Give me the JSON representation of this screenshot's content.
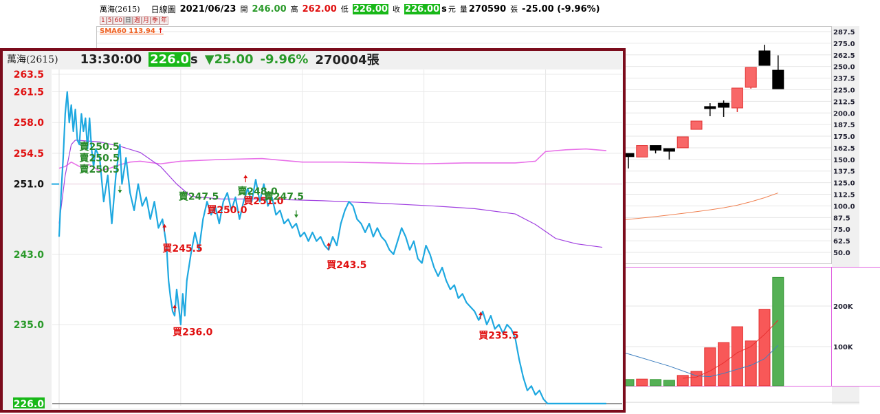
{
  "daily": {
    "stock_name": "萬海(2615)",
    "chart_type": "日線圖",
    "date": "2021/06/23",
    "open_label": "開",
    "open": "246.00",
    "high_label": "高",
    "high": "262.00",
    "low_label": "低",
    "low": "226.00",
    "close_label": "收",
    "close": "226.00",
    "suffix_s": "s",
    "currency": "元",
    "volume_label": "量",
    "volume": "270590",
    "volume_unit": "張",
    "change": "-25.00 (-9.96%)",
    "periods": [
      "1",
      "5",
      "60",
      "日",
      "週",
      "月",
      "季",
      "年"
    ],
    "selected_period": "日",
    "sma_label": "SMA60 113.94",
    "sma_arrow": "↑",
    "price_axis": [
      "287.5",
      "275.0",
      "262.5",
      "250.0",
      "237.5",
      "225.0",
      "212.5",
      "200.0",
      "187.5",
      "175.0",
      "162.5",
      "150.0",
      "137.5",
      "125.0",
      "112.5",
      "100.0",
      "87.5",
      "75.0",
      "62.5",
      "50.0"
    ],
    "volume_axis": [
      "200K",
      "100K"
    ],
    "colors": {
      "up": "#f86868",
      "down": "#000000",
      "sma60": "#f08050",
      "vol_up": "#f85858",
      "vol_down": "#55b055",
      "vol_ma_fast": "#e83030",
      "vol_ma_slow": "#4080c0"
    }
  },
  "chart_data": [
    {
      "type": "candlestick",
      "title": "日線圖",
      "ylim": [
        50,
        287.5
      ],
      "candles": [
        {
          "o": 156.5,
          "h": 156.5,
          "l": 140.3,
          "c": 153.0
        },
        {
          "o": 152.6,
          "h": 165.0,
          "l": 152.6,
          "c": 165.0
        },
        {
          "o": 165.0,
          "h": 165.0,
          "l": 156.5,
          "c": 160.0
        },
        {
          "o": 161.7,
          "h": 161.7,
          "l": 149.9,
          "c": 158.8
        },
        {
          "o": 162.5,
          "h": 174.3,
          "l": 162.5,
          "c": 174.3
        },
        {
          "o": 182.4,
          "h": 191.3,
          "l": 182.4,
          "c": 191.3
        },
        {
          "o": 206.9,
          "h": 210.5,
          "l": 196.5,
          "c": 205.4
        },
        {
          "o": 210.5,
          "h": 213.5,
          "l": 195.8,
          "c": 206.1
        },
        {
          "o": 205.4,
          "h": 226.8,
          "l": 201.0,
          "c": 226.8
        },
        {
          "o": 227.6,
          "h": 249.0,
          "l": 226.1,
          "c": 249.0
        },
        {
          "o": 266.8,
          "h": 273.4,
          "l": 251.2,
          "c": 251.2
        },
        {
          "o": 246.0,
          "h": 262.0,
          "l": 226.0,
          "c": 226.0
        }
      ],
      "sma60": [
        85.5,
        87.0,
        88.6,
        90.2,
        92.0,
        93.8,
        95.8,
        98.0,
        100.8,
        104.5,
        108.8,
        113.94
      ],
      "volume_k": [
        19,
        20,
        19,
        17,
        29,
        39,
        97,
        110,
        149,
        114,
        192,
        270.59
      ],
      "volume_up": [
        false,
        true,
        false,
        false,
        true,
        true,
        true,
        true,
        true,
        true,
        true,
        false
      ],
      "volume_ma_slow_k": [
        82,
        72,
        62,
        52,
        40,
        28,
        26,
        34,
        44,
        54,
        70,
        103
      ],
      "volume_ma_fast_k": [
        null,
        null,
        null,
        null,
        22,
        25,
        40,
        60,
        85,
        100,
        130,
        165
      ],
      "volume_ylim_k": [
        0,
        300
      ]
    },
    {
      "type": "line",
      "title": "",
      "ylim": [
        226.0,
        263.5
      ],
      "reference_price": 251.0,
      "x_unit": "minutes since 09:00",
      "xlim": [
        0,
        270
      ],
      "y_ticks": [
        "263.5",
        "261.5",
        "258.0",
        "254.5",
        "251.0",
        "243.0",
        "235.0",
        "226.0"
      ],
      "price": [
        [
          0,
          245
        ],
        [
          1,
          250
        ],
        [
          2,
          254
        ],
        [
          3,
          259
        ],
        [
          4,
          261.5
        ],
        [
          5,
          258
        ],
        [
          6,
          260
        ],
        [
          7,
          257
        ],
        [
          8,
          259.5
        ],
        [
          9,
          256
        ],
        [
          10,
          255.5
        ],
        [
          11,
          259
        ],
        [
          12,
          257
        ],
        [
          13,
          258.5
        ],
        [
          14,
          255
        ],
        [
          15,
          258.5
        ],
        [
          16,
          255
        ],
        [
          17,
          253
        ],
        [
          18,
          255
        ],
        [
          20,
          254
        ],
        [
          22,
          249
        ],
        [
          24,
          252
        ],
        [
          26,
          246.5
        ],
        [
          28,
          252
        ],
        [
          30,
          255.5
        ],
        [
          31,
          251
        ],
        [
          33,
          254
        ],
        [
          35,
          250
        ],
        [
          37,
          248
        ],
        [
          39,
          251
        ],
        [
          41,
          248.5
        ],
        [
          43,
          249.5
        ],
        [
          45,
          247
        ],
        [
          47,
          249
        ],
        [
          49,
          246
        ],
        [
          51,
          247
        ],
        [
          52,
          245.5
        ],
        [
          53,
          244
        ],
        [
          54,
          240
        ],
        [
          55,
          238
        ],
        [
          56,
          236.5
        ],
        [
          57,
          236
        ],
        [
          58,
          239
        ],
        [
          59,
          237
        ],
        [
          60,
          235
        ],
        [
          61,
          238.5
        ],
        [
          62,
          236
        ],
        [
          63,
          240
        ],
        [
          65,
          243
        ],
        [
          67,
          245.5
        ],
        [
          69,
          243.5
        ],
        [
          71,
          247
        ],
        [
          73,
          249
        ],
        [
          75,
          247.5
        ],
        [
          77,
          248.5
        ],
        [
          79,
          246.5
        ],
        [
          81,
          249
        ],
        [
          83,
          250
        ],
        [
          85,
          248
        ],
        [
          87,
          249.5
        ],
        [
          89,
          247
        ],
        [
          91,
          249
        ],
        [
          93,
          250.5
        ],
        [
          95,
          249
        ],
        [
          97,
          251.5
        ],
        [
          99,
          249
        ],
        [
          101,
          251
        ],
        [
          103,
          248.5
        ],
        [
          105,
          249.5
        ],
        [
          107,
          247.5
        ],
        [
          109,
          248
        ],
        [
          111,
          246.5
        ],
        [
          113,
          247
        ],
        [
          115,
          246
        ],
        [
          117,
          246.5
        ],
        [
          119,
          245
        ],
        [
          121,
          245.5
        ],
        [
          123,
          244.5
        ],
        [
          125,
          245.5
        ],
        [
          127,
          244.5
        ],
        [
          129,
          245
        ],
        [
          131,
          244
        ],
        [
          133,
          243.5
        ],
        [
          135,
          245
        ],
        [
          137,
          244
        ],
        [
          139,
          246.5
        ],
        [
          141,
          248
        ],
        [
          143,
          249
        ],
        [
          145,
          248.5
        ],
        [
          147,
          247
        ],
        [
          149,
          246.5
        ],
        [
          151,
          245.5
        ],
        [
          153,
          246.5
        ],
        [
          155,
          245
        ],
        [
          157,
          246
        ],
        [
          159,
          245
        ],
        [
          161,
          244.5
        ],
        [
          163,
          243.5
        ],
        [
          165,
          243
        ],
        [
          167,
          244.5
        ],
        [
          169,
          246
        ],
        [
          171,
          245
        ],
        [
          173,
          243.5
        ],
        [
          175,
          244.5
        ],
        [
          177,
          242.5
        ],
        [
          179,
          242
        ],
        [
          181,
          244
        ],
        [
          183,
          243
        ],
        [
          185,
          241.5
        ],
        [
          187,
          240.5
        ],
        [
          189,
          241.5
        ],
        [
          191,
          240
        ],
        [
          193,
          239
        ],
        [
          195,
          239.5
        ],
        [
          197,
          238
        ],
        [
          199,
          238.5
        ],
        [
          201,
          237.5
        ],
        [
          203,
          237
        ],
        [
          205,
          236.5
        ],
        [
          207,
          235.5
        ],
        [
          209,
          236.5
        ],
        [
          211,
          235
        ],
        [
          213,
          236
        ],
        [
          215,
          234.5
        ],
        [
          217,
          235
        ],
        [
          219,
          234
        ],
        [
          221,
          235
        ],
        [
          223,
          234.5
        ],
        [
          225,
          233.5
        ],
        [
          227,
          231
        ],
        [
          229,
          229
        ],
        [
          231,
          227.5
        ],
        [
          233,
          228
        ],
        [
          235,
          227
        ],
        [
          237,
          227.5
        ],
        [
          239,
          226.5
        ],
        [
          241,
          226
        ],
        [
          270,
          226
        ]
      ],
      "avg_pink": [
        [
          0,
          252.8
        ],
        [
          3,
          253
        ],
        [
          6,
          253.5
        ],
        [
          10,
          253
        ],
        [
          15,
          253.2
        ],
        [
          20,
          252.5
        ],
        [
          25,
          252.8
        ],
        [
          30,
          253.2
        ],
        [
          35,
          253.5
        ],
        [
          40,
          253.6
        ],
        [
          50,
          253.3
        ],
        [
          60,
          253.6
        ],
        [
          80,
          253.8
        ],
        [
          100,
          253.9
        ],
        [
          120,
          253.5
        ],
        [
          140,
          253.5
        ],
        [
          160,
          253.4
        ],
        [
          180,
          253.3
        ],
        [
          200,
          253.4
        ],
        [
          225,
          253.4
        ],
        [
          235,
          253.6
        ],
        [
          240,
          254.7
        ],
        [
          250,
          254.9
        ],
        [
          260,
          255
        ],
        [
          270,
          254.8
        ]
      ],
      "avg_purple": [
        [
          0,
          246.5
        ],
        [
          3,
          252
        ],
        [
          6,
          255.5
        ],
        [
          8,
          256
        ],
        [
          20,
          255.8
        ],
        [
          30,
          255.3
        ],
        [
          40,
          254.6
        ],
        [
          50,
          253
        ],
        [
          58,
          251
        ],
        [
          65,
          249.6
        ],
        [
          80,
          249.3
        ],
        [
          100,
          249.3
        ],
        [
          130,
          249.1
        ],
        [
          160,
          248.8
        ],
        [
          185,
          248.5
        ],
        [
          205,
          248.2
        ],
        [
          225,
          247.6
        ],
        [
          235,
          246.4
        ],
        [
          245,
          244.8
        ],
        [
          255,
          244.2
        ],
        [
          268,
          243.8
        ]
      ],
      "colors": {
        "price": "#1ea8e0",
        "avg_pink": "#e870e8",
        "avg_purple": "#a040e0",
        "sell": "#2a8a2a",
        "buy": "#e01010"
      },
      "annotations": [
        {
          "text": "賣250.5",
          "m": 10,
          "p": 254.9,
          "side": "sell"
        },
        {
          "text": "賣250.5",
          "m": 10,
          "p": 253.6,
          "side": "sell"
        },
        {
          "text": "賣250.5",
          "m": 10,
          "p": 252.3,
          "side": "sell"
        },
        {
          "text": "賣247.5",
          "m": 59,
          "p": 249.2,
          "side": "sell"
        },
        {
          "text": "買250.0",
          "m": 73,
          "p": 247.7,
          "side": "buy"
        },
        {
          "text": "賣248.0",
          "m": 88,
          "p": 249.8,
          "side": "sell"
        },
        {
          "text": "買251.0",
          "m": 91,
          "p": 248.7,
          "side": "buy"
        },
        {
          "text": "賣247.5",
          "m": 101,
          "p": 249.2,
          "side": "sell"
        },
        {
          "text": "買245.5",
          "m": 51,
          "p": 243.3,
          "side": "buy"
        },
        {
          "text": "買236.0",
          "m": 56,
          "p": 233.8,
          "side": "buy"
        },
        {
          "text": "買243.5",
          "m": 132,
          "p": 241.4,
          "side": "buy"
        },
        {
          "text": "買235.5",
          "m": 207,
          "p": 233.4,
          "side": "buy"
        }
      ],
      "arrows": [
        {
          "m": 30,
          "p": 250.8,
          "dir": "down",
          "side": "sell"
        },
        {
          "m": 117,
          "p": 248.0,
          "dir": "down",
          "side": "sell"
        },
        {
          "m": 52,
          "p": 245.6,
          "dir": "up",
          "side": "buy"
        },
        {
          "m": 57,
          "p": 236.4,
          "dir": "up",
          "side": "buy"
        },
        {
          "m": 92,
          "p": 251.2,
          "dir": "up",
          "side": "buy"
        },
        {
          "m": 133,
          "p": 243.5,
          "dir": "up",
          "side": "buy"
        },
        {
          "m": 208,
          "p": 235.6,
          "dir": "up",
          "side": "buy"
        }
      ]
    }
  ],
  "intraday": {
    "stock_name": "萬海(2615)",
    "time": "13:30:00",
    "price": "226.0",
    "suffix_s": "s",
    "change": "▼25.00",
    "change_pct": "-9.96%",
    "volume": "270004張"
  }
}
